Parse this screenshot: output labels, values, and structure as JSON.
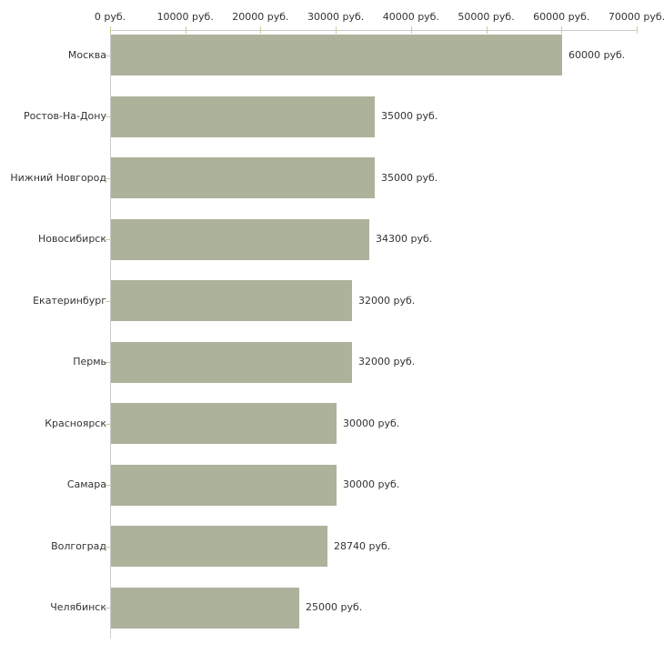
{
  "chart_data": {
    "type": "bar",
    "orientation": "horizontal",
    "title": "",
    "unit": "руб.",
    "categories": [
      "Москва",
      "Ростов-На-Дону",
      "Нижний Новгород",
      "Новосибирск",
      "Екатеринбург",
      "Пермь",
      "Красноярск",
      "Самара",
      "Волгоград",
      "Челябинск"
    ],
    "values": [
      60000,
      35000,
      35000,
      34300,
      32000,
      32000,
      30000,
      30000,
      28740,
      25000
    ],
    "value_labels": [
      "60000 руб.",
      "35000 руб.",
      "35000 руб.",
      "34300 руб.",
      "32000 руб.",
      "32000 руб.",
      "30000 руб.",
      "30000 руб.",
      "28740 руб.",
      "25000 руб."
    ],
    "x_axis": {
      "position": "top",
      "min": 0,
      "max": 70000,
      "tick_values": [
        0,
        10000,
        20000,
        30000,
        40000,
        50000,
        60000,
        70000
      ],
      "tick_labels": [
        "0 руб.",
        "10000 руб.",
        "20000 руб.",
        "30000 руб.",
        "40000 руб.",
        "50000 руб.",
        "60000 руб.",
        "70000 руб."
      ]
    },
    "grid": false,
    "legend_position": "none",
    "colors": {
      "bar": "#adb29b",
      "axis_line": "#cccccc",
      "tick_mark": "#cccc99",
      "text": "#333333",
      "background": "#ffffff"
    }
  }
}
